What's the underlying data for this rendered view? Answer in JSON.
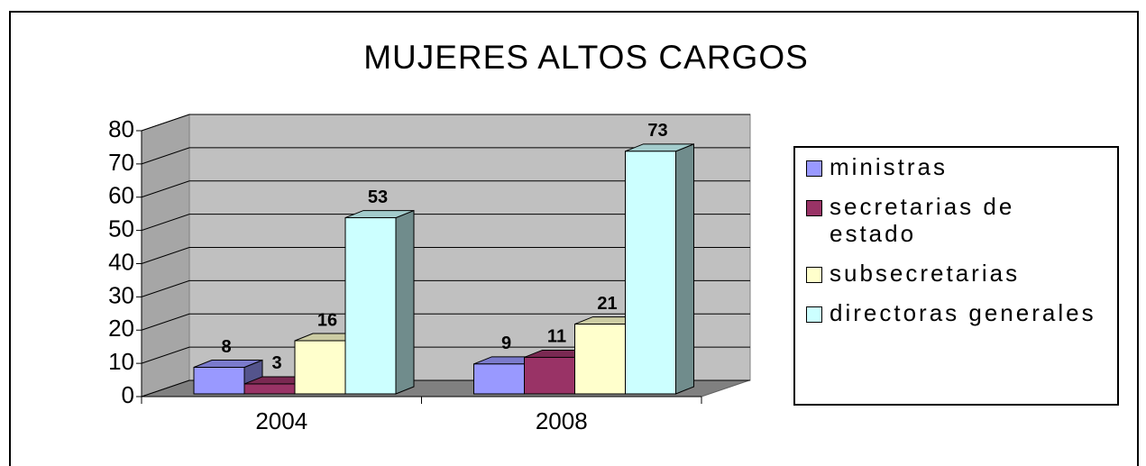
{
  "chart_data": {
    "type": "bar3d",
    "title": "MUJERES ALTOS CARGOS",
    "categories": [
      "2004",
      "2008"
    ],
    "series": [
      {
        "name": "ministras",
        "color": "#9999ff",
        "values": [
          8,
          9
        ]
      },
      {
        "name": "secretarias de estado",
        "color": "#993366",
        "values": [
          3,
          11
        ]
      },
      {
        "name": "subsecretarias",
        "color": "#ffffcc",
        "values": [
          16,
          21
        ]
      },
      {
        "name": "directoras generales",
        "color": "#ccffff",
        "values": [
          53,
          73
        ]
      }
    ],
    "ylim": [
      0,
      80
    ],
    "yticks": [
      0,
      10,
      20,
      30,
      40,
      50,
      60,
      70,
      80
    ],
    "grid": true,
    "legend": "right"
  }
}
